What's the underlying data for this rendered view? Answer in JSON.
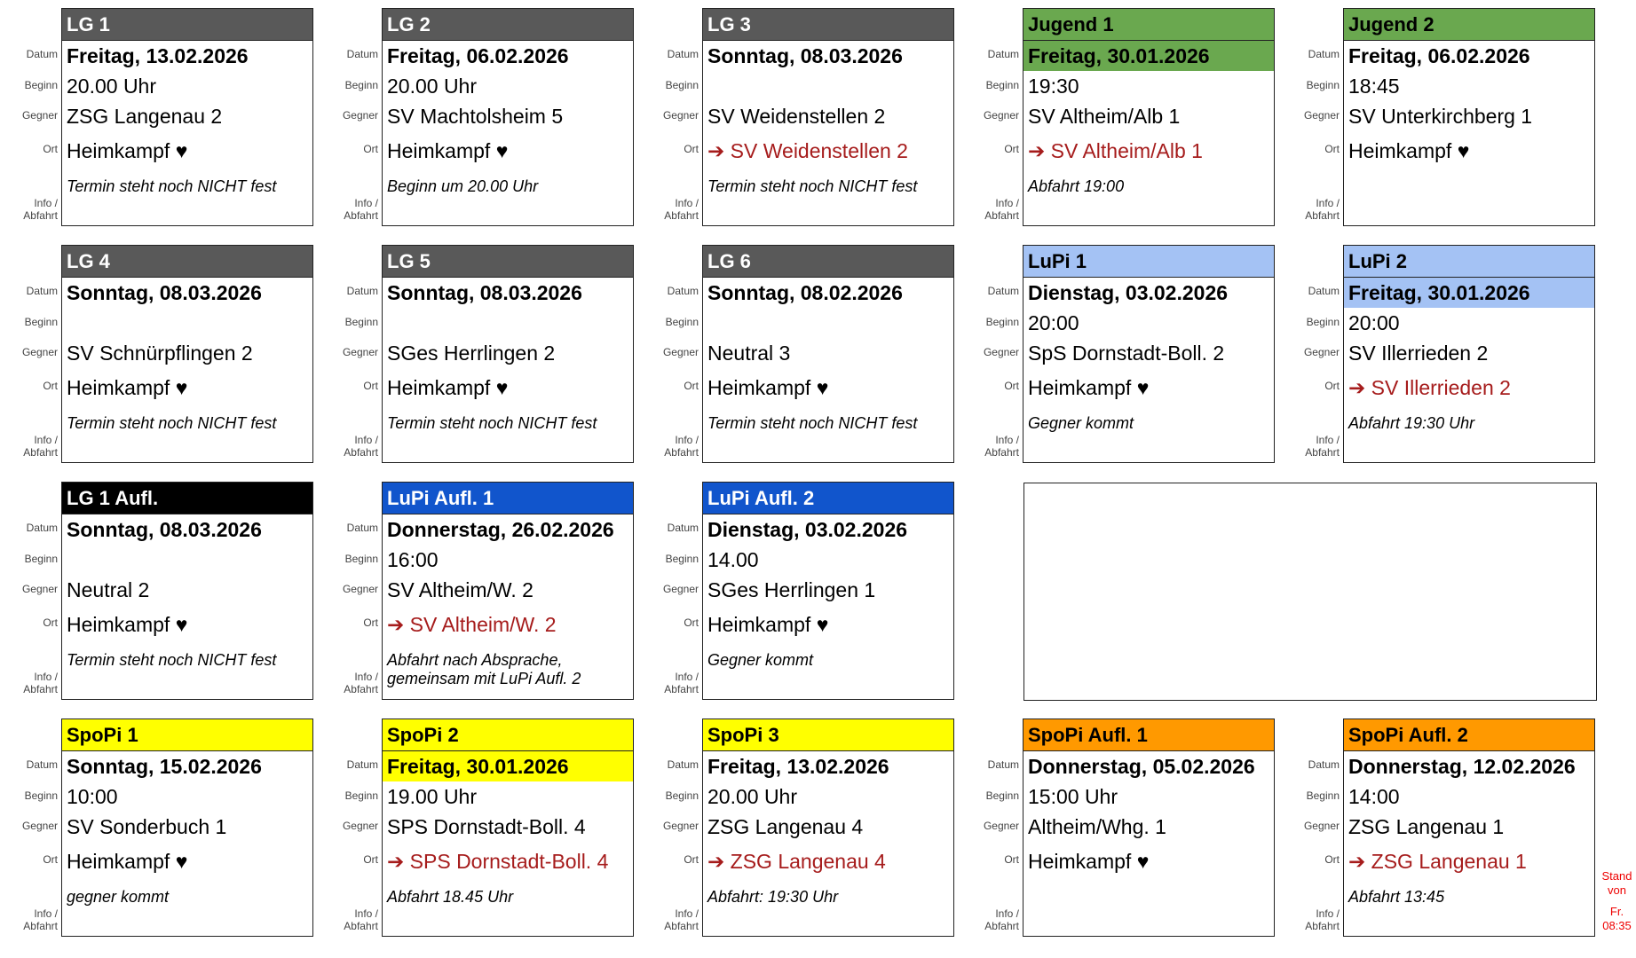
{
  "labels": {
    "date": "Datum",
    "time": "Beginn",
    "opponent": "Gegner",
    "location": "Ort",
    "info": "Info /",
    "departure": "Abfahrt"
  },
  "cards": [
    {
      "title": "LG 1",
      "color": "#595959",
      "title_color": "#ffffff",
      "date": "Freitag, 13.02.2026",
      "time": "20.00 Uhr",
      "opponent": "ZSG Langenau 2",
      "location": "Heimkampf ♥",
      "info": "Termin steht noch NICHT fest"
    },
    {
      "title": "LG 2",
      "color": "#595959",
      "title_color": "#ffffff",
      "date": "Freitag, 06.02.2026",
      "time": "20.00 Uhr",
      "opponent": "SV Machtolsheim 5",
      "location": "Heimkampf ♥",
      "info": "Beginn um 20.00 Uhr"
    },
    {
      "title": "LG 3",
      "color": "#595959",
      "title_color": "#ffffff",
      "date": "Sonntag, 08.03.2026",
      "opponent": "SV Weidenstellen 2",
      "location": "➔ SV Weidenstellen 2",
      "location_color": "#a61c1c",
      "info": "Termin steht noch NICHT fest"
    },
    {
      "title": "Jugend 1",
      "color": "#6aa84f",
      "title_color": "#000000",
      "date": "Freitag, 30.01.2026",
      "date_background": "#6aa84f",
      "time": "19:30",
      "opponent": "SV Altheim/Alb 1",
      "location": "➔ SV Altheim/Alb 1",
      "location_color": "#a61c1c",
      "info": "Abfahrt 19:00"
    },
    {
      "title": "Jugend 2",
      "color": "#6aa84f",
      "title_color": "#000000",
      "date": "Freitag, 06.02.2026",
      "time": "18:45",
      "opponent": "SV Unterkirchberg 1",
      "location": "Heimkampf ♥"
    },
    {
      "title": "LG 4",
      "color": "#595959",
      "title_color": "#ffffff",
      "date": "Sonntag, 08.03.2026",
      "opponent": "SV Schnürpflingen 2",
      "location": "Heimkampf ♥",
      "info": "Termin steht noch NICHT fest"
    },
    {
      "title": "LG 5",
      "color": "#595959",
      "title_color": "#ffffff",
      "date": "Sonntag, 08.03.2026",
      "opponent": "SGes Herrlingen 2",
      "location": "Heimkampf ♥",
      "info": "Termin steht noch NICHT fest"
    },
    {
      "title": "LG 6",
      "color": "#595959",
      "title_color": "#ffffff",
      "date": "Sonntag, 08.02.2026",
      "opponent": "Neutral 3",
      "location": "Heimkampf ♥",
      "info": "Termin steht noch NICHT fest"
    },
    {
      "title": "LuPi 1",
      "color": "#a4c2f4",
      "title_color": "#000000",
      "date": "Dienstag, 03.02.2026",
      "time": "20:00",
      "opponent": "SpS Dornstadt-Boll. 2",
      "location": "Heimkampf ♥",
      "info": "Gegner kommt"
    },
    {
      "title": "LuPi 2",
      "color": "#a4c2f4",
      "title_color": "#000000",
      "date": "Freitag, 30.01.2026",
      "date_background": "#a4c2f4",
      "time": "20:00",
      "opponent": "SV Illerrieden 2",
      "location": "➔ SV Illerrieden 2",
      "location_color": "#a61c1c",
      "info": "Abfahrt 19:30 Uhr"
    },
    {
      "title": "LG 1 Aufl.",
      "color": "#000000",
      "title_color": "#ffffff",
      "date": "Sonntag, 08.03.2026",
      "opponent": "Neutral 2",
      "location": "Heimkampf ♥",
      "info": "Termin steht noch NICHT fest"
    },
    {
      "title": "LuPi Aufl. 1",
      "color": "#1155cc",
      "title_color": "#ffffff",
      "date": "Donnerstag, 26.02.2026",
      "time": "16:00",
      "opponent": "SV Altheim/W. 2",
      "location": "➔ SV Altheim/W. 2",
      "location_color": "#a61c1c",
      "info": "Abfahrt nach Absprache, gemeinsam mit LuPi Aufl. 2"
    },
    {
      "title": "LuPi Aufl. 2",
      "color": "#1155cc",
      "title_color": "#ffffff",
      "date": "Dienstag, 03.02.2026",
      "time": "14.00",
      "opponent": "SGes Herrlingen 1",
      "location": "Heimkampf ♥",
      "info": "Gegner kommt"
    },
    {
      "title": "SpoPi 1",
      "color": "#ffff00",
      "title_color": "#000000",
      "date": "Sonntag, 15.02.2026",
      "time": "10:00",
      "opponent": "SV Sonderbuch 1",
      "location": "Heimkampf ♥",
      "info": "gegner kommt"
    },
    {
      "title": "SpoPi 2",
      "color": "#ffff00",
      "title_color": "#000000",
      "date": "Freitag, 30.01.2026",
      "date_background": "#ffff00",
      "time": "19.00 Uhr",
      "opponent": "SPS Dornstadt-Boll. 4",
      "location": "➔ SPS Dornstadt-Boll. 4",
      "location_color": "#a61c1c",
      "info": "Abfahrt 18.45 Uhr"
    },
    {
      "title": "SpoPi 3",
      "color": "#ffff00",
      "title_color": "#000000",
      "date": "Freitag, 13.02.2026",
      "time": "20.00 Uhr",
      "opponent": "ZSG Langenau 4",
      "location": "➔ ZSG Langenau 4",
      "location_color": "#a61c1c",
      "info": "Abfahrt: 19:30 Uhr"
    },
    {
      "title": "SpoPi Aufl. 1",
      "color": "#ff9900",
      "title_color": "#000000",
      "date": "Donnerstag, 05.02.2026",
      "time": "15:00 Uhr",
      "opponent": "Altheim/Whg. 1",
      "location": "Heimkampf ♥"
    },
    {
      "title": "SpoPi Aufl. 2",
      "color": "#ff9900",
      "title_color": "#000000",
      "date": "Donnerstag, 12.02.2026",
      "time": "14:00",
      "opponent": "ZSG Langenau 1",
      "location": "➔ ZSG Langenau 1",
      "location_color": "#a61c1c",
      "info": "Abfahrt 13:45"
    }
  ],
  "stamp": [
    "Stand",
    "von",
    "Fr.",
    "08:35"
  ]
}
